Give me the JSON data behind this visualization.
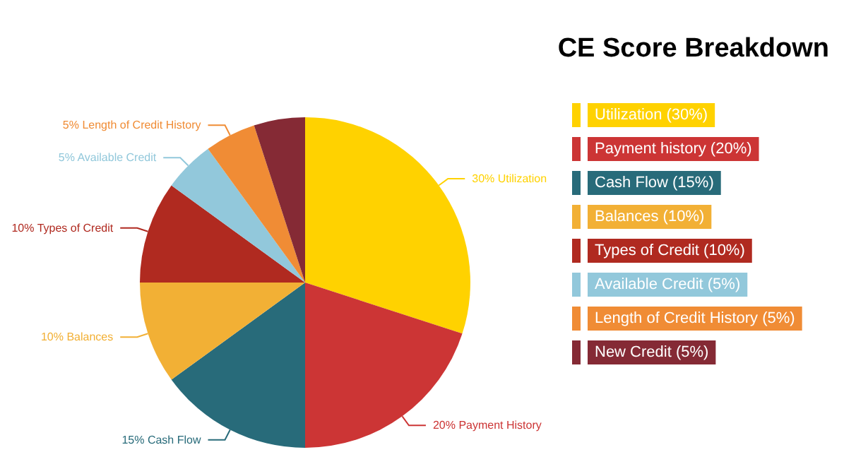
{
  "chart_data": {
    "type": "pie",
    "title": "CE Score Breakdown",
    "categories": [
      "Utilization (30%)",
      "Payment history (20%)",
      "Cash Flow (15%)",
      "Balances (10%)",
      "Types of Credit (10%)",
      "Available Credit (5%)",
      "Length of Credit History (5%)",
      "New Credit (5%)"
    ],
    "values": [
      30,
      20,
      15,
      10,
      10,
      5,
      5,
      5
    ],
    "colors": [
      "#ffd200",
      "#cc3535",
      "#286b7a",
      "#f2b035",
      "#b02a20",
      "#92c8db",
      "#f08c35",
      "#852a35"
    ],
    "value_labels": [
      "30% Utilization",
      "20% Payment History",
      "15% Cash Flow",
      "10% Balances",
      "10% Types of Credit",
      "5% Available Credit",
      "5% Length of Credit History",
      null
    ],
    "legend": "right"
  }
}
